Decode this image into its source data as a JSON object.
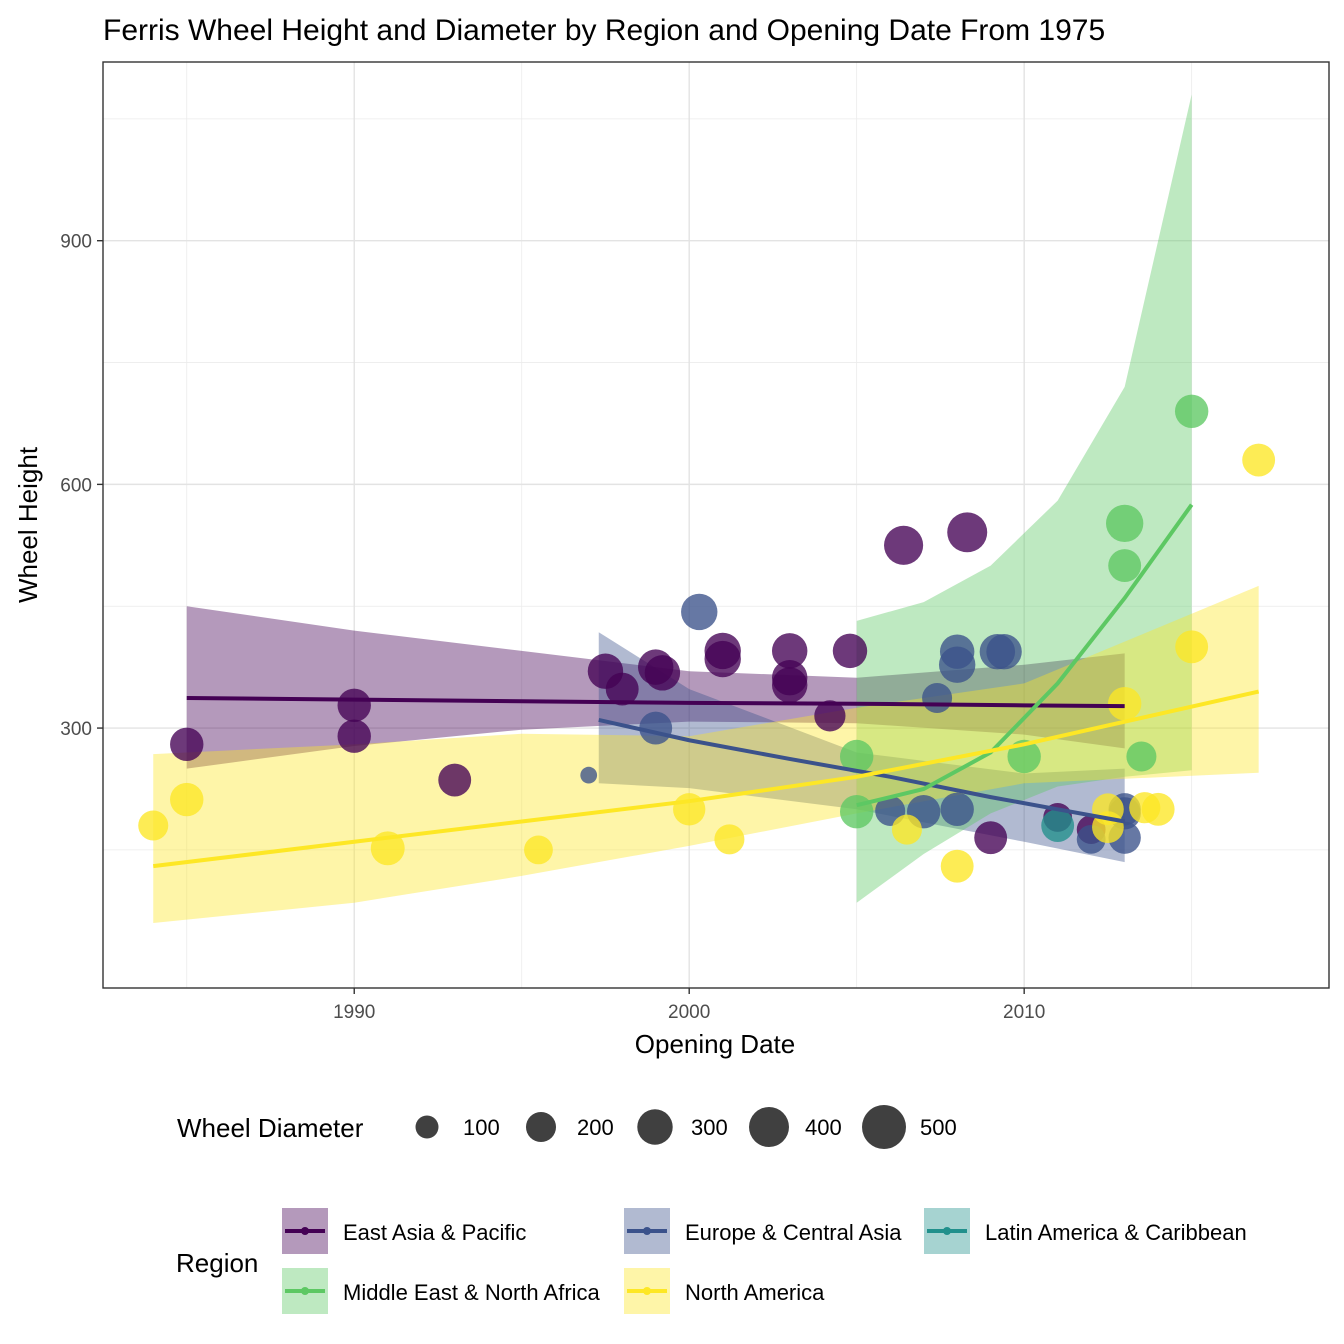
{
  "chart_data": {
    "type": "scatter",
    "title": "Ferris Wheel Height and Diameter by Region and Opening Date From 1975",
    "xlabel": "Opening Date",
    "ylabel": "Wheel Height",
    "xlim": [
      1982.5,
      2019.1
    ],
    "ylim": [
      -20,
      1120
    ],
    "x_ticks": [
      1990,
      2000,
      2010
    ],
    "y_ticks": [
      300,
      600,
      900
    ],
    "grid": true,
    "legend_position": "bottom",
    "size_legend": {
      "title": "Wheel Diameter",
      "entries": [
        {
          "label": "100",
          "value": 100
        },
        {
          "label": "200",
          "value": 200
        },
        {
          "label": "300",
          "value": 300
        },
        {
          "label": "400",
          "value": 400
        },
        {
          "label": "500",
          "value": 500
        }
      ]
    },
    "color_legend": {
      "title": "Region",
      "entries": [
        {
          "label": "East Asia & Pacific",
          "color": "#440154"
        },
        {
          "label": "Europe & Central Asia",
          "color": "#3B528B"
        },
        {
          "label": "Latin America & Caribbean",
          "color": "#21908C"
        },
        {
          "label": "Middle East & North Africa",
          "color": "#5DC863"
        },
        {
          "label": "North America",
          "color": "#FDE725"
        }
      ]
    },
    "bands": [
      {
        "region": "East Asia & Pacific",
        "color": "#440154",
        "x": [
          1985,
          1990,
          1995,
          2000,
          2005,
          2010,
          2013
        ],
        "lower": [
          250,
          278,
          298,
          308,
          306,
          292,
          275
        ],
        "upper": [
          450,
          420,
          395,
          370,
          362,
          378,
          392
        ]
      },
      {
        "region": "Europe & Central Asia",
        "color": "#3B528B",
        "x": [
          1997.3,
          2000,
          2005,
          2010,
          2013
        ],
        "lower": [
          232,
          226,
          200,
          160,
          135
        ],
        "upper": [
          418,
          348,
          270,
          244,
          250
        ]
      },
      {
        "region": "Middle East & North Africa",
        "color": "#5DC863",
        "x": [
          2005,
          2007,
          2009,
          2011,
          2013,
          2015
        ],
        "lower": [
          85,
          145,
          195,
          228,
          240,
          248
        ],
        "upper": [
          432,
          455,
          500,
          580,
          720,
          1080
        ]
      },
      {
        "region": "North America",
        "color": "#FDE725",
        "x": [
          1984,
          1990,
          1995,
          2000,
          2005,
          2010,
          2017
        ],
        "lower": [
          60,
          85,
          118,
          155,
          195,
          232,
          245
        ],
        "upper": [
          268,
          280,
          293,
          290,
          325,
          355,
          475
        ]
      }
    ],
    "fit_lines": [
      {
        "region": "East Asia & Pacific",
        "color": "#440154",
        "x": [
          1985,
          1990,
          1995,
          2000,
          2005,
          2010,
          2013
        ],
        "y": [
          337,
          335,
          333,
          331,
          330,
          328,
          327
        ]
      },
      {
        "region": "Europe & Central Asia",
        "color": "#3B528B",
        "x": [
          1997.3,
          2000,
          2003,
          2006,
          2009,
          2011,
          2013
        ],
        "y": [
          310,
          285,
          262,
          240,
          215,
          200,
          185
        ]
      },
      {
        "region": "Middle East & North Africa",
        "color": "#5DC863",
        "x": [
          2005,
          2007,
          2009,
          2011,
          2013,
          2015
        ],
        "y": [
          205,
          225,
          270,
          355,
          460,
          575
        ]
      },
      {
        "region": "North America",
        "color": "#FDE725",
        "x": [
          1984,
          1990,
          1995,
          2000,
          2005,
          2010,
          2017
        ],
        "y": [
          130,
          160,
          185,
          210,
          240,
          280,
          345
        ]
      }
    ],
    "series": [
      {
        "name": "East Asia & Pacific",
        "color": "#440154",
        "points": [
          {
            "x": 1985,
            "y": 280,
            "d": 260
          },
          {
            "x": 1990,
            "y": 328,
            "d": 260
          },
          {
            "x": 1990,
            "y": 290,
            "d": 260
          },
          {
            "x": 1993,
            "y": 236,
            "d": 250
          },
          {
            "x": 1997.5,
            "y": 370,
            "d": 300
          },
          {
            "x": 1998,
            "y": 348,
            "d": 250
          },
          {
            "x": 1999,
            "y": 375,
            "d": 300
          },
          {
            "x": 1999.2,
            "y": 368,
            "d": 300
          },
          {
            "x": 2001,
            "y": 395,
            "d": 320
          },
          {
            "x": 2001,
            "y": 385,
            "d": 320
          },
          {
            "x": 2003,
            "y": 395,
            "d": 300
          },
          {
            "x": 2003,
            "y": 362,
            "d": 300
          },
          {
            "x": 2003,
            "y": 353,
            "d": 300
          },
          {
            "x": 2004.2,
            "y": 315,
            "d": 220
          },
          {
            "x": 2004.8,
            "y": 395,
            "d": 280
          },
          {
            "x": 2006.4,
            "y": 525,
            "d": 380
          },
          {
            "x": 2008.3,
            "y": 541,
            "d": 400
          },
          {
            "x": 2009,
            "y": 165,
            "d": 250
          },
          {
            "x": 2011,
            "y": 190,
            "d": 180
          },
          {
            "x": 2012,
            "y": 175,
            "d": 180
          }
        ]
      },
      {
        "name": "Europe & Central Asia",
        "color": "#3B528B",
        "points": [
          {
            "x": 1997.0,
            "y": 242,
            "d": 40
          },
          {
            "x": 1999,
            "y": 300,
            "d": 250
          },
          {
            "x": 2000.3,
            "y": 443,
            "d": 320
          },
          {
            "x": 2006,
            "y": 198,
            "d": 200
          },
          {
            "x": 2007,
            "y": 197,
            "d": 260
          },
          {
            "x": 2007.4,
            "y": 337,
            "d": 200
          },
          {
            "x": 2008,
            "y": 394,
            "d": 280
          },
          {
            "x": 2008,
            "y": 378,
            "d": 320
          },
          {
            "x": 2008,
            "y": 200,
            "d": 260
          },
          {
            "x": 2009.2,
            "y": 394,
            "d": 300
          },
          {
            "x": 2009.4,
            "y": 394,
            "d": 300
          },
          {
            "x": 2012,
            "y": 163,
            "d": 180
          },
          {
            "x": 2013,
            "y": 200,
            "d": 240
          },
          {
            "x": 2013,
            "y": 165,
            "d": 240
          },
          {
            "x": 2013,
            "y": 195,
            "d": 240
          }
        ]
      },
      {
        "name": "Latin America & Caribbean",
        "color": "#21908C",
        "points": [
          {
            "x": 2011,
            "y": 180,
            "d": 250
          }
        ]
      },
      {
        "name": "Middle East & North Africa",
        "color": "#5DC863",
        "points": [
          {
            "x": 2005,
            "y": 265,
            "d": 260
          },
          {
            "x": 2005,
            "y": 197,
            "d": 260
          },
          {
            "x": 2010,
            "y": 265,
            "d": 260
          },
          {
            "x": 2015,
            "y": 690,
            "d": 260
          },
          {
            "x": 2013,
            "y": 552,
            "d": 340
          },
          {
            "x": 2013,
            "y": 500,
            "d": 250
          },
          {
            "x": 2013.5,
            "y": 265,
            "d": 200
          }
        ]
      },
      {
        "name": "North America",
        "color": "#FDE725",
        "points": [
          {
            "x": 1984,
            "y": 180,
            "d": 200
          },
          {
            "x": 1985,
            "y": 212,
            "d": 260
          },
          {
            "x": 1991,
            "y": 152,
            "d": 270
          },
          {
            "x": 1995.5,
            "y": 150,
            "d": 180
          },
          {
            "x": 2000,
            "y": 200,
            "d": 240
          },
          {
            "x": 2001.2,
            "y": 163,
            "d": 200
          },
          {
            "x": 2006.5,
            "y": 175,
            "d": 200
          },
          {
            "x": 2008,
            "y": 130,
            "d": 250
          },
          {
            "x": 2013,
            "y": 330,
            "d": 260
          },
          {
            "x": 2012.5,
            "y": 200,
            "d": 230
          },
          {
            "x": 2012.5,
            "y": 178,
            "d": 230
          },
          {
            "x": 2013.6,
            "y": 202,
            "d": 220
          },
          {
            "x": 2014,
            "y": 200,
            "d": 250
          },
          {
            "x": 2015,
            "y": 400,
            "d": 250
          },
          {
            "x": 2017,
            "y": 630,
            "d": 250
          }
        ]
      }
    ]
  }
}
